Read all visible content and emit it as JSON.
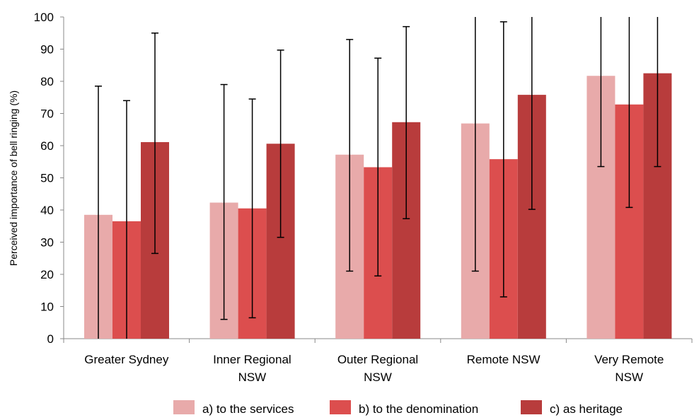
{
  "chart_data": {
    "type": "bar",
    "title": "",
    "xlabel": "",
    "ylabel": "Perceived importance of bell ringing (%)",
    "ylim": [
      0,
      100
    ],
    "yticks": [
      0,
      10,
      20,
      30,
      40,
      50,
      60,
      70,
      80,
      90,
      100
    ],
    "categories": [
      [
        "Greater Sydney"
      ],
      [
        "Inner Regional",
        "NSW"
      ],
      [
        "Outer Regional",
        "NSW"
      ],
      [
        "Remote NSW"
      ],
      [
        "Very Remote",
        "NSW"
      ]
    ],
    "series": [
      {
        "name": "a) to the services",
        "color": "#e8aaaa",
        "values": [
          38.5,
          42.3,
          57.2,
          66.9,
          81.7
        ],
        "error_low": [
          0,
          6,
          21,
          21,
          53.5
        ],
        "error_high": [
          78.5,
          79,
          93,
          100,
          100
        ]
      },
      {
        "name": "b) to the denomination",
        "color": "#dc4e4e",
        "values": [
          36.5,
          40.5,
          53.3,
          55.8,
          72.8
        ],
        "error_low": [
          0,
          6.5,
          19.5,
          13,
          40.8
        ],
        "error_high": [
          74,
          74.5,
          87.2,
          98.5,
          100
        ]
      },
      {
        "name": "c) as heritage",
        "color": "#b83c3c",
        "values": [
          61.1,
          60.6,
          67.3,
          75.8,
          82.5
        ],
        "error_low": [
          26.5,
          31.5,
          37.3,
          40.2,
          53.5
        ],
        "error_high": [
          95,
          89.7,
          97,
          100,
          100
        ]
      }
    ],
    "grid": false,
    "legend_position": "bottom"
  }
}
